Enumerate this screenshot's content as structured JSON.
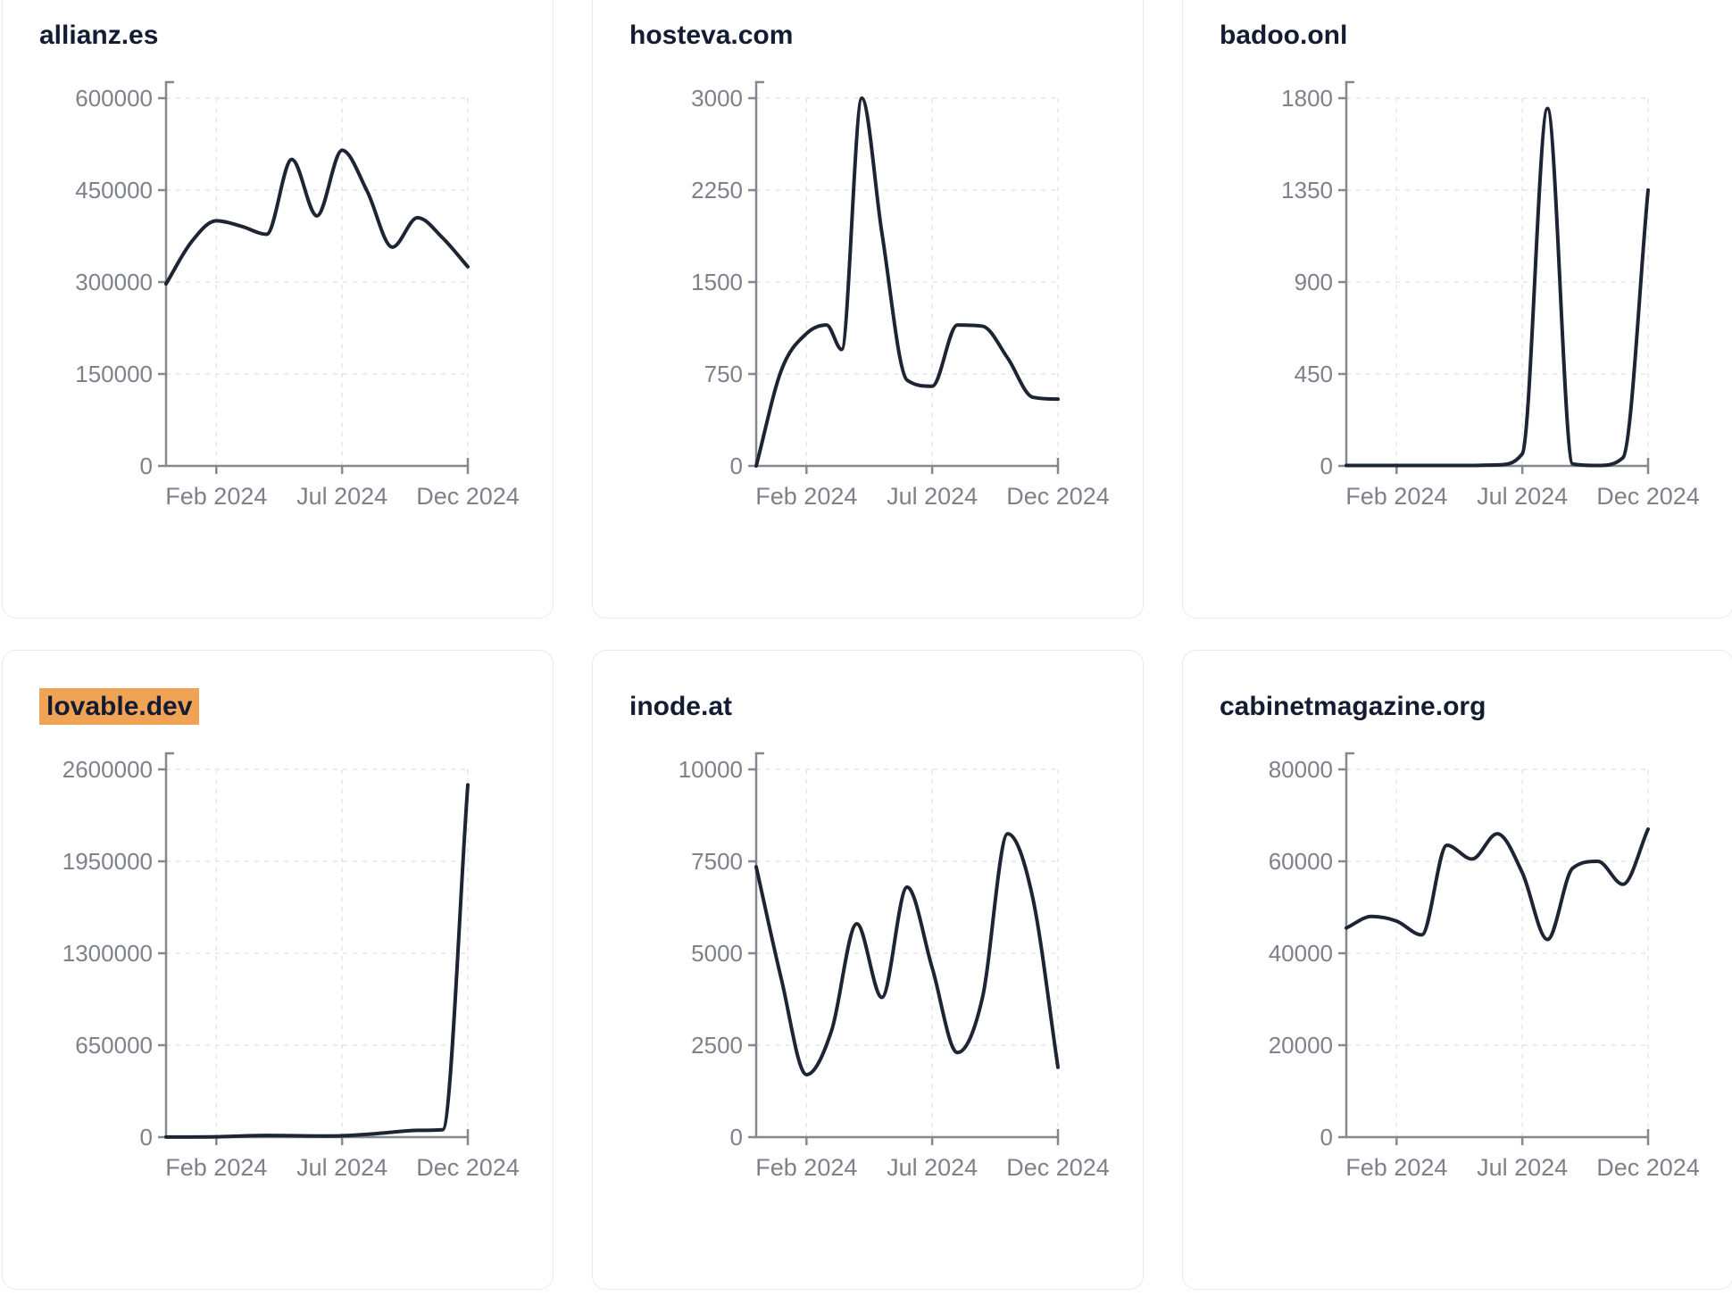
{
  "colors": {
    "line": "#1d2433",
    "title": "#131c33",
    "highlight_bg": "#f0a355",
    "axis": "#85888e",
    "tick_label": "#7d818a",
    "grid": "#e6e6ea",
    "card_border": "#e8eaf2",
    "background": "#ffffff"
  },
  "x_axis": {
    "tick_labels": [
      "Feb 2024",
      "Jul 2024",
      "Dec 2024"
    ],
    "tick_months": [
      2,
      7,
      12
    ],
    "months_total": 12
  },
  "chart_data": [
    {
      "type": "line",
      "title": "allianz.es",
      "highlighted": false,
      "ylim": [
        0,
        600000
      ],
      "yticks": [
        0,
        150000,
        300000,
        450000,
        600000
      ],
      "points": [
        [
          0,
          297000
        ],
        [
          1,
          365000
        ],
        [
          2,
          400000
        ],
        [
          3,
          391000
        ],
        [
          4,
          378000
        ],
        [
          5,
          500000
        ],
        [
          6,
          408000
        ],
        [
          7,
          515000
        ],
        [
          8,
          448000
        ],
        [
          9,
          357000
        ],
        [
          10,
          405000
        ],
        [
          11,
          372000
        ],
        [
          12,
          325000
        ]
      ]
    },
    {
      "type": "line",
      "title": "hosteva.com",
      "highlighted": false,
      "ylim": [
        0,
        3000
      ],
      "yticks": [
        0,
        750,
        1500,
        2250,
        3000
      ],
      "points": [
        [
          0,
          0
        ],
        [
          1,
          780
        ],
        [
          2,
          1080
        ],
        [
          2.8,
          1150
        ],
        [
          3.4,
          950
        ],
        [
          4.2,
          3000
        ],
        [
          5,
          1900
        ],
        [
          6,
          700
        ],
        [
          7,
          650
        ],
        [
          8,
          1150
        ],
        [
          9,
          1140
        ],
        [
          10,
          880
        ],
        [
          11,
          560
        ],
        [
          12,
          545
        ]
      ]
    },
    {
      "type": "line",
      "title": "badoo.onl",
      "highlighted": false,
      "ylim": [
        0,
        1800
      ],
      "yticks": [
        0,
        450,
        900,
        1350,
        1800
      ],
      "points": [
        [
          0,
          2
        ],
        [
          1,
          2
        ],
        [
          2,
          2
        ],
        [
          3,
          2
        ],
        [
          4,
          2
        ],
        [
          5,
          2
        ],
        [
          6,
          5
        ],
        [
          7,
          60
        ],
        [
          8,
          1750
        ],
        [
          9,
          10
        ],
        [
          10,
          2
        ],
        [
          11,
          40
        ],
        [
          12,
          1350
        ]
      ]
    },
    {
      "type": "line",
      "title": "lovable.dev",
      "highlighted": true,
      "ylim": [
        0,
        2600000
      ],
      "yticks": [
        0,
        650000,
        1300000,
        1950000,
        2600000
      ],
      "points": [
        [
          0,
          1000
        ],
        [
          1,
          1000
        ],
        [
          2,
          2000
        ],
        [
          3,
          8000
        ],
        [
          4,
          12000
        ],
        [
          5,
          10000
        ],
        [
          6,
          8000
        ],
        [
          7,
          10000
        ],
        [
          8,
          20000
        ],
        [
          9,
          35000
        ],
        [
          10,
          48000
        ],
        [
          11,
          52000
        ],
        [
          12,
          2490000
        ]
      ]
    },
    {
      "type": "line",
      "title": "inode.at",
      "highlighted": false,
      "ylim": [
        0,
        10000
      ],
      "yticks": [
        0,
        2500,
        5000,
        7500,
        10000
      ],
      "points": [
        [
          0,
          7350
        ],
        [
          1,
          4300
        ],
        [
          2,
          1700
        ],
        [
          3,
          2900
        ],
        [
          4,
          5800
        ],
        [
          5,
          3800
        ],
        [
          6,
          6800
        ],
        [
          7,
          4600
        ],
        [
          8,
          2300
        ],
        [
          9,
          3800
        ],
        [
          10,
          8250
        ],
        [
          11,
          6500
        ],
        [
          12,
          1900
        ]
      ]
    },
    {
      "type": "line",
      "title": "cabinetmagazine.org",
      "highlighted": false,
      "ylim": [
        0,
        80000
      ],
      "yticks": [
        0,
        20000,
        40000,
        60000,
        80000
      ],
      "points": [
        [
          0,
          45500
        ],
        [
          1,
          48000
        ],
        [
          2,
          47000
        ],
        [
          3,
          44000
        ],
        [
          4,
          63500
        ],
        [
          5,
          60500
        ],
        [
          6,
          66000
        ],
        [
          7,
          57500
        ],
        [
          8,
          43000
        ],
        [
          9,
          58500
        ],
        [
          10,
          60000
        ],
        [
          11,
          55000
        ],
        [
          12,
          67000
        ]
      ]
    }
  ]
}
